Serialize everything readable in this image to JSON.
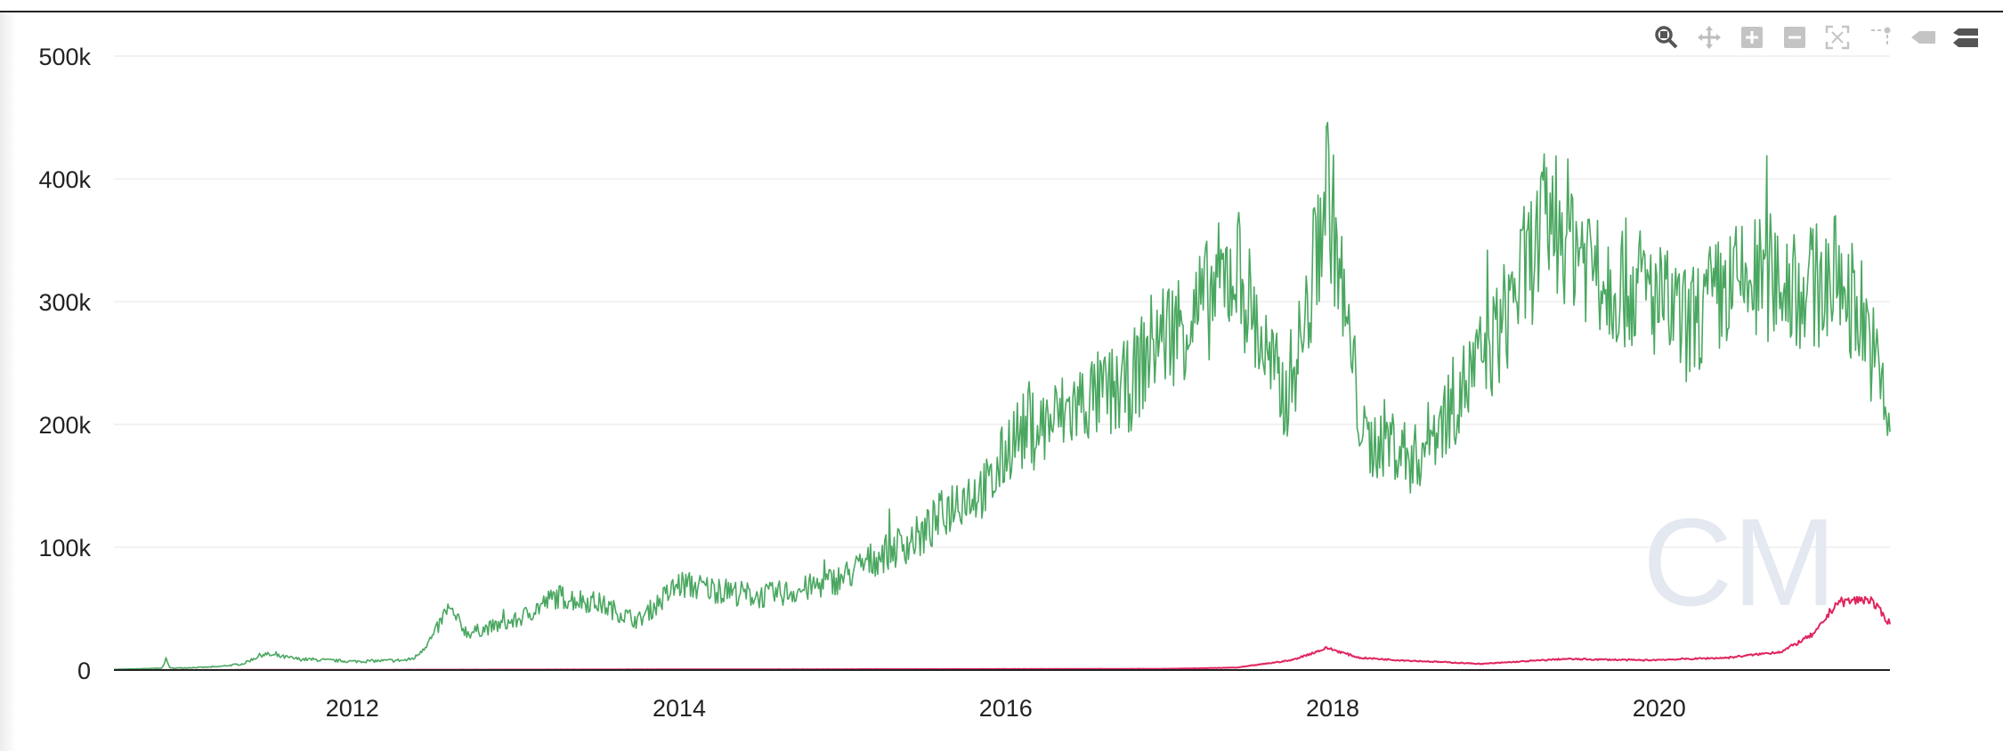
{
  "toolbar": {
    "buttons": [
      {
        "name": "zoom-icon"
      },
      {
        "name": "pan-icon"
      },
      {
        "name": "zoom-in-icon"
      },
      {
        "name": "zoom-out-icon"
      },
      {
        "name": "autoscale-icon"
      },
      {
        "name": "spike-lines-icon"
      },
      {
        "name": "hover-closest-icon"
      },
      {
        "name": "hover-compare-icon"
      }
    ]
  },
  "watermark": "CM",
  "chart_data": {
    "type": "line",
    "x_range": [
      "2010-07-17",
      "2021-05-31"
    ],
    "ylim": [
      0,
      500000
    ],
    "grid": true,
    "y_ticks": [
      {
        "value": 0,
        "label": "0"
      },
      {
        "value": 100000,
        "label": "100k"
      },
      {
        "value": 200000,
        "label": "200k"
      },
      {
        "value": 300000,
        "label": "300k"
      },
      {
        "value": 400000,
        "label": "400k"
      },
      {
        "value": 500000,
        "label": "500k"
      }
    ],
    "x_ticks": [
      {
        "date": "2012-01-01",
        "label": "2012"
      },
      {
        "date": "2014-01-01",
        "label": "2014"
      },
      {
        "date": "2016-01-01",
        "label": "2016"
      },
      {
        "date": "2018-01-01",
        "label": "2018"
      },
      {
        "date": "2020-01-01",
        "label": "2020"
      }
    ],
    "series": [
      {
        "color": "#4aa760",
        "points": [
          [
            "2010-07-17",
            500
          ],
          [
            "2010-11-01",
            1500
          ],
          [
            "2010-11-10",
            9000
          ],
          [
            "2010-11-20",
            1500
          ],
          [
            "2011-03-01",
            2500
          ],
          [
            "2011-05-01",
            5000
          ],
          [
            "2011-06-15",
            13000
          ],
          [
            "2011-09-01",
            9000
          ],
          [
            "2012-01-01",
            7000
          ],
          [
            "2012-05-01",
            8000
          ],
          [
            "2012-05-20",
            10000
          ],
          [
            "2012-07-01",
            28000
          ],
          [
            "2012-08-01",
            50000
          ],
          [
            "2012-09-15",
            30000
          ],
          [
            "2013-01-01",
            40000
          ],
          [
            "2013-04-01",
            60000
          ],
          [
            "2013-07-01",
            55000
          ],
          [
            "2013-10-01",
            40000
          ],
          [
            "2014-01-01",
            70000
          ],
          [
            "2014-04-01",
            65000
          ],
          [
            "2014-07-01",
            60000
          ],
          [
            "2014-10-01",
            65000
          ],
          [
            "2015-01-01",
            75000
          ],
          [
            "2015-04-01",
            95000
          ],
          [
            "2015-07-01",
            110000
          ],
          [
            "2015-09-15",
            140000
          ],
          [
            "2015-12-01",
            150000
          ],
          [
            "2016-01-15",
            190000
          ],
          [
            "2016-04-01",
            200000
          ],
          [
            "2016-07-01",
            220000
          ],
          [
            "2016-10-01",
            230000
          ],
          [
            "2016-12-01",
            270000
          ],
          [
            "2017-03-01",
            290000
          ],
          [
            "2017-06-01",
            330000
          ],
          [
            "2017-08-01",
            260000
          ],
          [
            "2017-09-15",
            220000
          ],
          [
            "2017-11-01",
            280000
          ],
          [
            "2017-12-20",
            400000
          ],
          [
            "2018-02-01",
            280000
          ],
          [
            "2018-03-15",
            180000
          ],
          [
            "2018-05-01",
            190000
          ],
          [
            "2018-07-01",
            170000
          ],
          [
            "2018-10-01",
            220000
          ],
          [
            "2019-01-01",
            270000
          ],
          [
            "2019-03-01",
            320000
          ],
          [
            "2019-05-01",
            370000
          ],
          [
            "2019-07-01",
            350000
          ],
          [
            "2019-09-01",
            320000
          ],
          [
            "2019-12-01",
            310000
          ],
          [
            "2020-03-01",
            280000
          ],
          [
            "2020-06-01",
            310000
          ],
          [
            "2020-09-01",
            320000
          ],
          [
            "2020-12-01",
            310000
          ],
          [
            "2021-02-01",
            320000
          ],
          [
            "2021-04-01",
            290000
          ],
          [
            "2021-05-31",
            200000
          ]
        ]
      },
      {
        "color": "#e0245e",
        "points": [
          [
            "2010-07-17",
            0
          ],
          [
            "2014-01-01",
            500
          ],
          [
            "2016-01-01",
            800
          ],
          [
            "2017-01-01",
            1000
          ],
          [
            "2017-06-01",
            2000
          ],
          [
            "2017-10-01",
            8000
          ],
          [
            "2017-12-20",
            18000
          ],
          [
            "2018-03-01",
            10000
          ],
          [
            "2018-06-01",
            8000
          ],
          [
            "2018-12-01",
            5000
          ],
          [
            "2019-06-01",
            9000
          ],
          [
            "2019-12-01",
            8000
          ],
          [
            "2020-06-01",
            10000
          ],
          [
            "2020-10-01",
            15000
          ],
          [
            "2020-12-15",
            30000
          ],
          [
            "2021-02-01",
            55000
          ],
          [
            "2021-04-15",
            58000
          ],
          [
            "2021-05-31",
            38000
          ]
        ]
      }
    ]
  }
}
